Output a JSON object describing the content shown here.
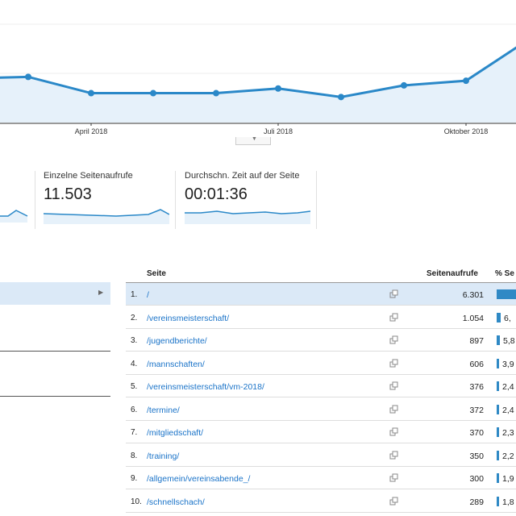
{
  "chart": {
    "x_labels": [
      "April 2018",
      "Juli 2018",
      "Oktober 2018"
    ],
    "series_values": [
      0.58,
      0.59,
      0.38,
      0.38,
      0.38,
      0.44,
      0.33,
      0.48,
      0.54,
      1.0
    ],
    "line_color": "#2a88c8",
    "fill_color": "#e6f1fa"
  },
  "metrics": [
    {
      "label": "Einzelne Seitenaufrufe",
      "value": "11.503"
    },
    {
      "label": "Durchschn. Zeit auf der Seite",
      "value": "00:01:36"
    }
  ],
  "table": {
    "headers": {
      "page": "Seite",
      "views": "Seitenaufrufe",
      "pct": "% Se"
    },
    "rows": [
      {
        "idx": "1.",
        "page": "/",
        "views": "6.301",
        "pct": "",
        "share": 0.548
      },
      {
        "idx": "2.",
        "page": "/vereinsmeisterschaft/",
        "views": "1.054",
        "pct": "6,",
        "share": 0.092
      },
      {
        "idx": "3.",
        "page": "/jugendberichte/",
        "views": "897",
        "pct": "5,8",
        "share": 0.078
      },
      {
        "idx": "4.",
        "page": "/mannschaften/",
        "views": "606",
        "pct": "3,9",
        "share": 0.053
      },
      {
        "idx": "5.",
        "page": "/vereinsmeisterschaft/vm-2018/",
        "views": "376",
        "pct": "2,4",
        "share": 0.033
      },
      {
        "idx": "6.",
        "page": "/termine/",
        "views": "372",
        "pct": "2,4",
        "share": 0.032
      },
      {
        "idx": "7.",
        "page": "/mitgliedschaft/",
        "views": "370",
        "pct": "2,3",
        "share": 0.032
      },
      {
        "idx": "8.",
        "page": "/training/",
        "views": "350",
        "pct": "2,2",
        "share": 0.03
      },
      {
        "idx": "9.",
        "page": "/allgemein/vereinsabende_/",
        "views": "300",
        "pct": "1,9",
        "share": 0.026
      },
      {
        "idx": "10.",
        "page": "/schnellschach/",
        "views": "289",
        "pct": "1,8",
        "share": 0.025
      }
    ]
  }
}
